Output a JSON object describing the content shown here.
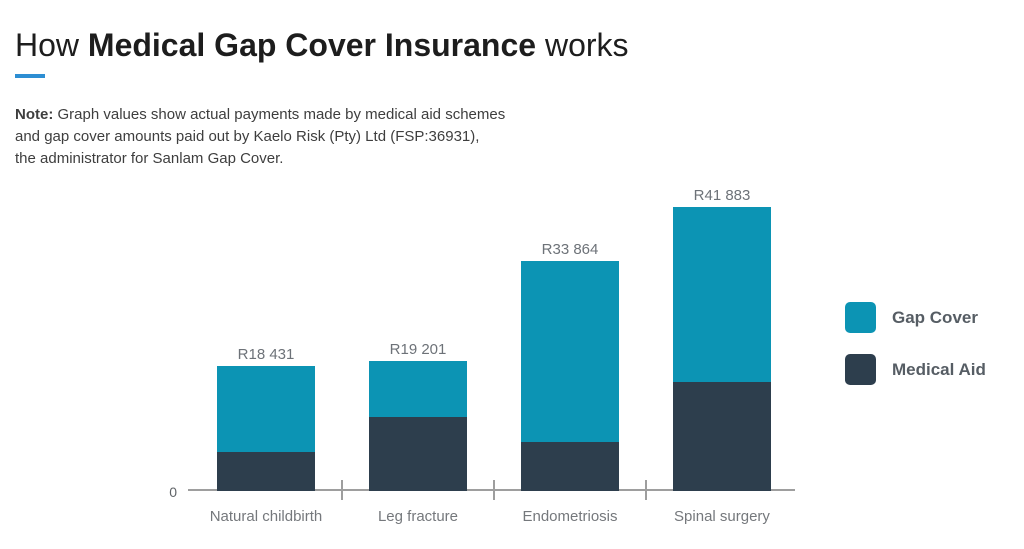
{
  "page": {
    "background": "#ffffff"
  },
  "title": {
    "prefix": "How ",
    "highlight": "Medical Gap Cover Insurance",
    "suffix": " works",
    "accent_bar_color": "#2d8ed3"
  },
  "note": {
    "label": "Note:",
    "line1_rest": " Graph values show actual payments made by medical aid schemes",
    "line2": "and gap cover amounts paid out by Kaelo Risk (Pty) Ltd (FSP:36931),",
    "line3": "the administrator for Sanlam Gap Cover."
  },
  "chart_data": {
    "type": "bar",
    "stacked": true,
    "title": "How Medical Gap Cover Insurance works",
    "categories": [
      "Natural childbirth",
      "Leg fracture",
      "Endometriosis",
      "Spinal surgery"
    ],
    "series": [
      {
        "name": "Gap Cover",
        "color": "#0c94b4",
        "values": [
          12631,
          8301,
          26664,
          25783
        ]
      },
      {
        "name": "Medical Aid",
        "color": "#2d3e4d",
        "values": [
          5800,
          10900,
          7200,
          16100
        ]
      }
    ],
    "totals": [
      18431,
      19201,
      33864,
      41883
    ],
    "total_labels": [
      "R18 431",
      "R19 201",
      "R33 864",
      "R41 883"
    ],
    "y_axis": {
      "zero_label": "0"
    },
    "ylim": [
      0,
      45000
    ],
    "grid": false,
    "legend_position": "right",
    "axis_color": "#9e9e9e"
  }
}
